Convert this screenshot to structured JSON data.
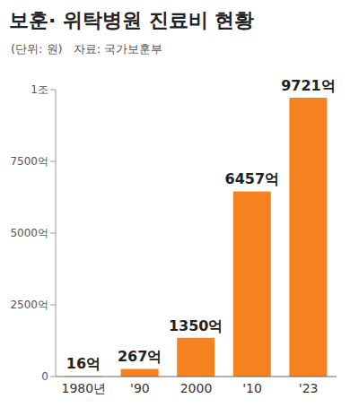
{
  "chart_data": {
    "type": "bar",
    "title": "보훈· 위탁병원 진료비 현황",
    "subtitle": "(단위: 원)",
    "source": "자료: 국가보훈부",
    "categories": [
      "1980년",
      "'90",
      "2000",
      "'10",
      "'23"
    ],
    "values": [
      16,
      267,
      1350,
      6457,
      9721
    ],
    "value_labels": [
      "16억",
      "267억",
      "1350억",
      "6457억",
      "9721억"
    ],
    "color": "#f5821f",
    "ylim": [
      0,
      10000
    ],
    "yticks": [
      0,
      {
        "value": 2500,
        "label": "2500억"
      },
      {
        "value": 5000,
        "label": "5000억"
      },
      {
        "value": 7500,
        "label": "7500억"
      },
      {
        "value": 10000,
        "label": "1조"
      }
    ],
    "grid": false,
    "data_labels": true
  }
}
